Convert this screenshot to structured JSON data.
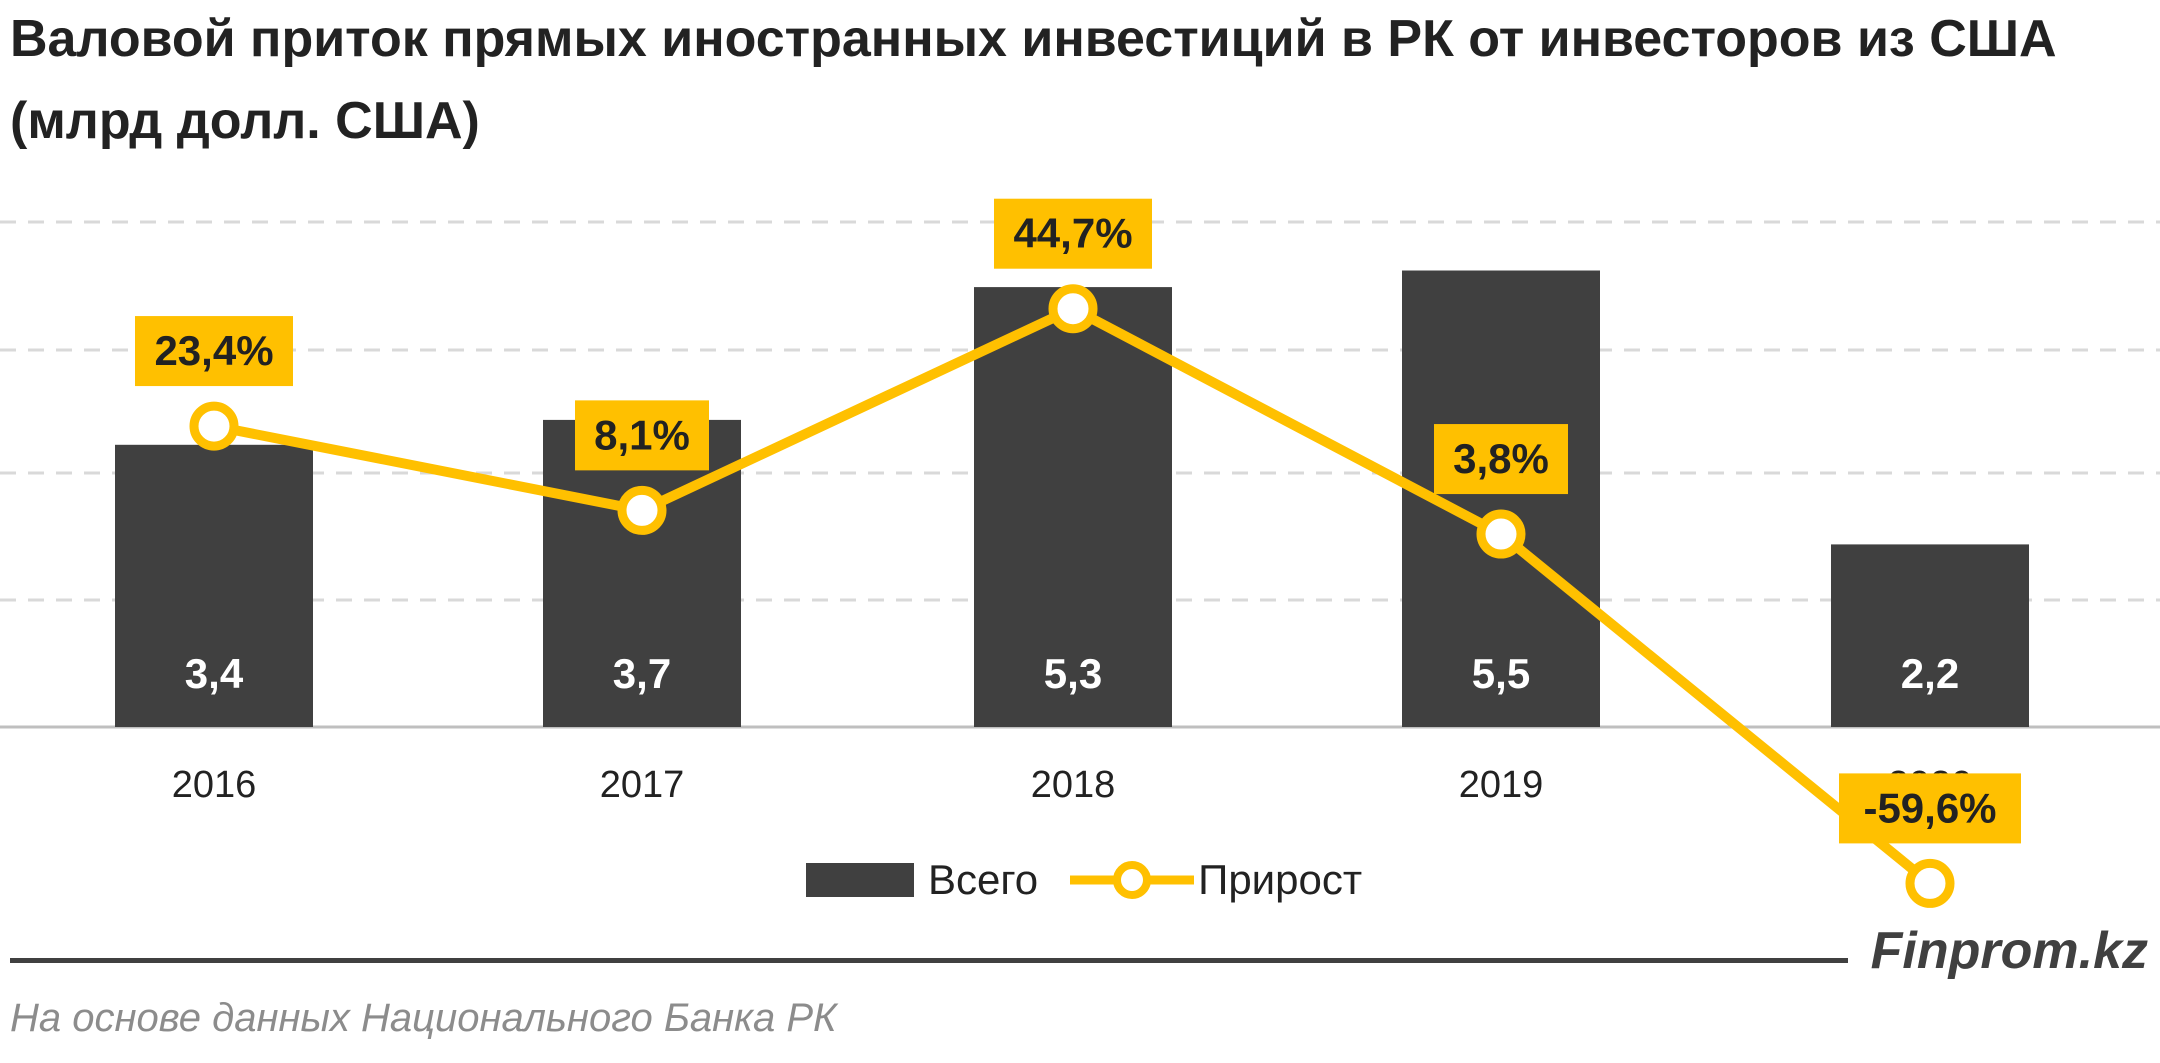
{
  "title": "Валовой приток прямых иностранных инвестиций в РК от инвесторов из США (млрд долл. США)",
  "chart_data": {
    "type": "bar",
    "categories": [
      "2016",
      "2017",
      "2018",
      "2019",
      "2020"
    ],
    "series": [
      {
        "name": "Всего",
        "type": "bar",
        "values": [
          3.4,
          3.7,
          5.3,
          5.5,
          2.2
        ],
        "labels": [
          "3,4",
          "3,7",
          "5,3",
          "5,5",
          "2,2"
        ],
        "color": "#404040"
      },
      {
        "name": "Прирост",
        "type": "line",
        "values": [
          23.4,
          8.1,
          44.7,
          3.8,
          -59.6
        ],
        "labels": [
          "23,4%",
          "8,1%",
          "44,7%",
          "3,8%",
          "-59,6%"
        ],
        "color": "#FFC000"
      }
    ],
    "grid": true,
    "legend_position": "bottom"
  },
  "legend": {
    "items": [
      {
        "label": "Всего"
      },
      {
        "label": "Прирост"
      }
    ]
  },
  "footer": {
    "brand": "Finprom.kz",
    "source": "На основе данных  Национального  Банка РК"
  }
}
